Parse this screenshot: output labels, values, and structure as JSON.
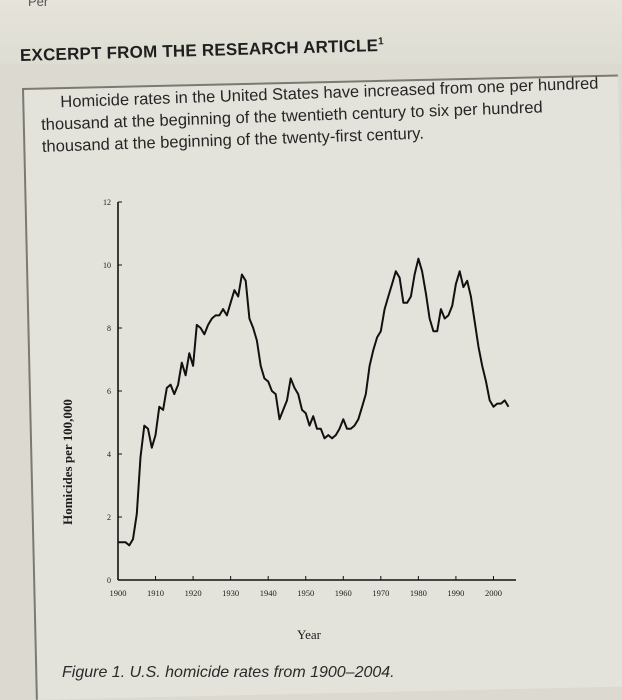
{
  "page": {
    "top_fragment": "Per",
    "heading": "EXCERPT FROM THE RESEARCH ARTICLE",
    "heading_footnote": "1",
    "intro_text": "Homicide rates in the United States have increased from one per hundred thousand at the beginning of the twentieth century to six per hundred thousand at the beginning of the twenty-first century.",
    "caption": "Figure 1. U.S. homicide rates from 1900–2004."
  },
  "chart_data": {
    "type": "line",
    "title": "",
    "xlabel": "Year",
    "ylabel": "Homicides per 100,000",
    "xlim": [
      1900,
      2006
    ],
    "ylim": [
      0,
      12
    ],
    "x_ticks": [
      1900,
      1910,
      1920,
      1930,
      1940,
      1950,
      1960,
      1970,
      1980,
      1990,
      2000
    ],
    "y_ticks": [
      0,
      2,
      4,
      6,
      8,
      10,
      12
    ],
    "grid": false,
    "legend": "none",
    "line_color": "#111111",
    "series": [
      {
        "x": [
          1900,
          1901,
          1902,
          1903,
          1904,
          1905,
          1906,
          1907,
          1908,
          1909,
          1910,
          1911,
          1912,
          1913,
          1914,
          1915,
          1916,
          1917,
          1918,
          1919,
          1920,
          1921,
          1922,
          1923,
          1924,
          1925,
          1926,
          1927,
          1928,
          1929,
          1930,
          1931,
          1932,
          1933,
          1934,
          1935,
          1936,
          1937,
          1938,
          1939,
          1940,
          1941,
          1942,
          1943,
          1944,
          1945,
          1946,
          1947,
          1948,
          1949,
          1950,
          1951,
          1952,
          1953,
          1954,
          1955,
          1956,
          1957,
          1958,
          1959,
          1960,
          1961,
          1962,
          1963,
          1964,
          1965,
          1966,
          1967,
          1968,
          1969,
          1970,
          1971,
          1972,
          1973,
          1974,
          1975,
          1976,
          1977,
          1978,
          1979,
          1980,
          1981,
          1982,
          1983,
          1984,
          1985,
          1986,
          1987,
          1988,
          1989,
          1990,
          1991,
          1992,
          1993,
          1994,
          1995,
          1996,
          1997,
          1998,
          1999,
          2000,
          2001,
          2002,
          2003,
          2004
        ],
        "values": [
          1.2,
          1.2,
          1.2,
          1.1,
          1.3,
          2.1,
          3.9,
          4.9,
          4.8,
          4.2,
          4.6,
          5.5,
          5.4,
          6.1,
          6.2,
          5.9,
          6.2,
          6.9,
          6.5,
          7.2,
          6.8,
          8.1,
          8.0,
          7.8,
          8.1,
          8.3,
          8.4,
          8.4,
          8.6,
          8.4,
          8.8,
          9.2,
          9.0,
          9.7,
          9.5,
          8.3,
          8.0,
          7.6,
          6.8,
          6.4,
          6.3,
          6.0,
          5.9,
          5.1,
          5.4,
          5.7,
          6.4,
          6.1,
          5.9,
          5.4,
          5.3,
          4.9,
          5.2,
          4.8,
          4.8,
          4.5,
          4.6,
          4.5,
          4.6,
          4.8,
          5.1,
          4.8,
          4.8,
          4.9,
          5.1,
          5.5,
          5.9,
          6.8,
          7.3,
          7.7,
          7.9,
          8.6,
          9.0,
          9.4,
          9.8,
          9.6,
          8.8,
          8.8,
          9.0,
          9.7,
          10.2,
          9.8,
          9.1,
          8.3,
          7.9,
          7.9,
          8.6,
          8.3,
          8.4,
          8.7,
          9.4,
          9.8,
          9.3,
          9.5,
          9.0,
          8.2,
          7.4,
          6.8,
          6.3,
          5.7,
          5.5,
          5.6,
          5.6,
          5.7,
          5.5
        ]
      }
    ]
  }
}
